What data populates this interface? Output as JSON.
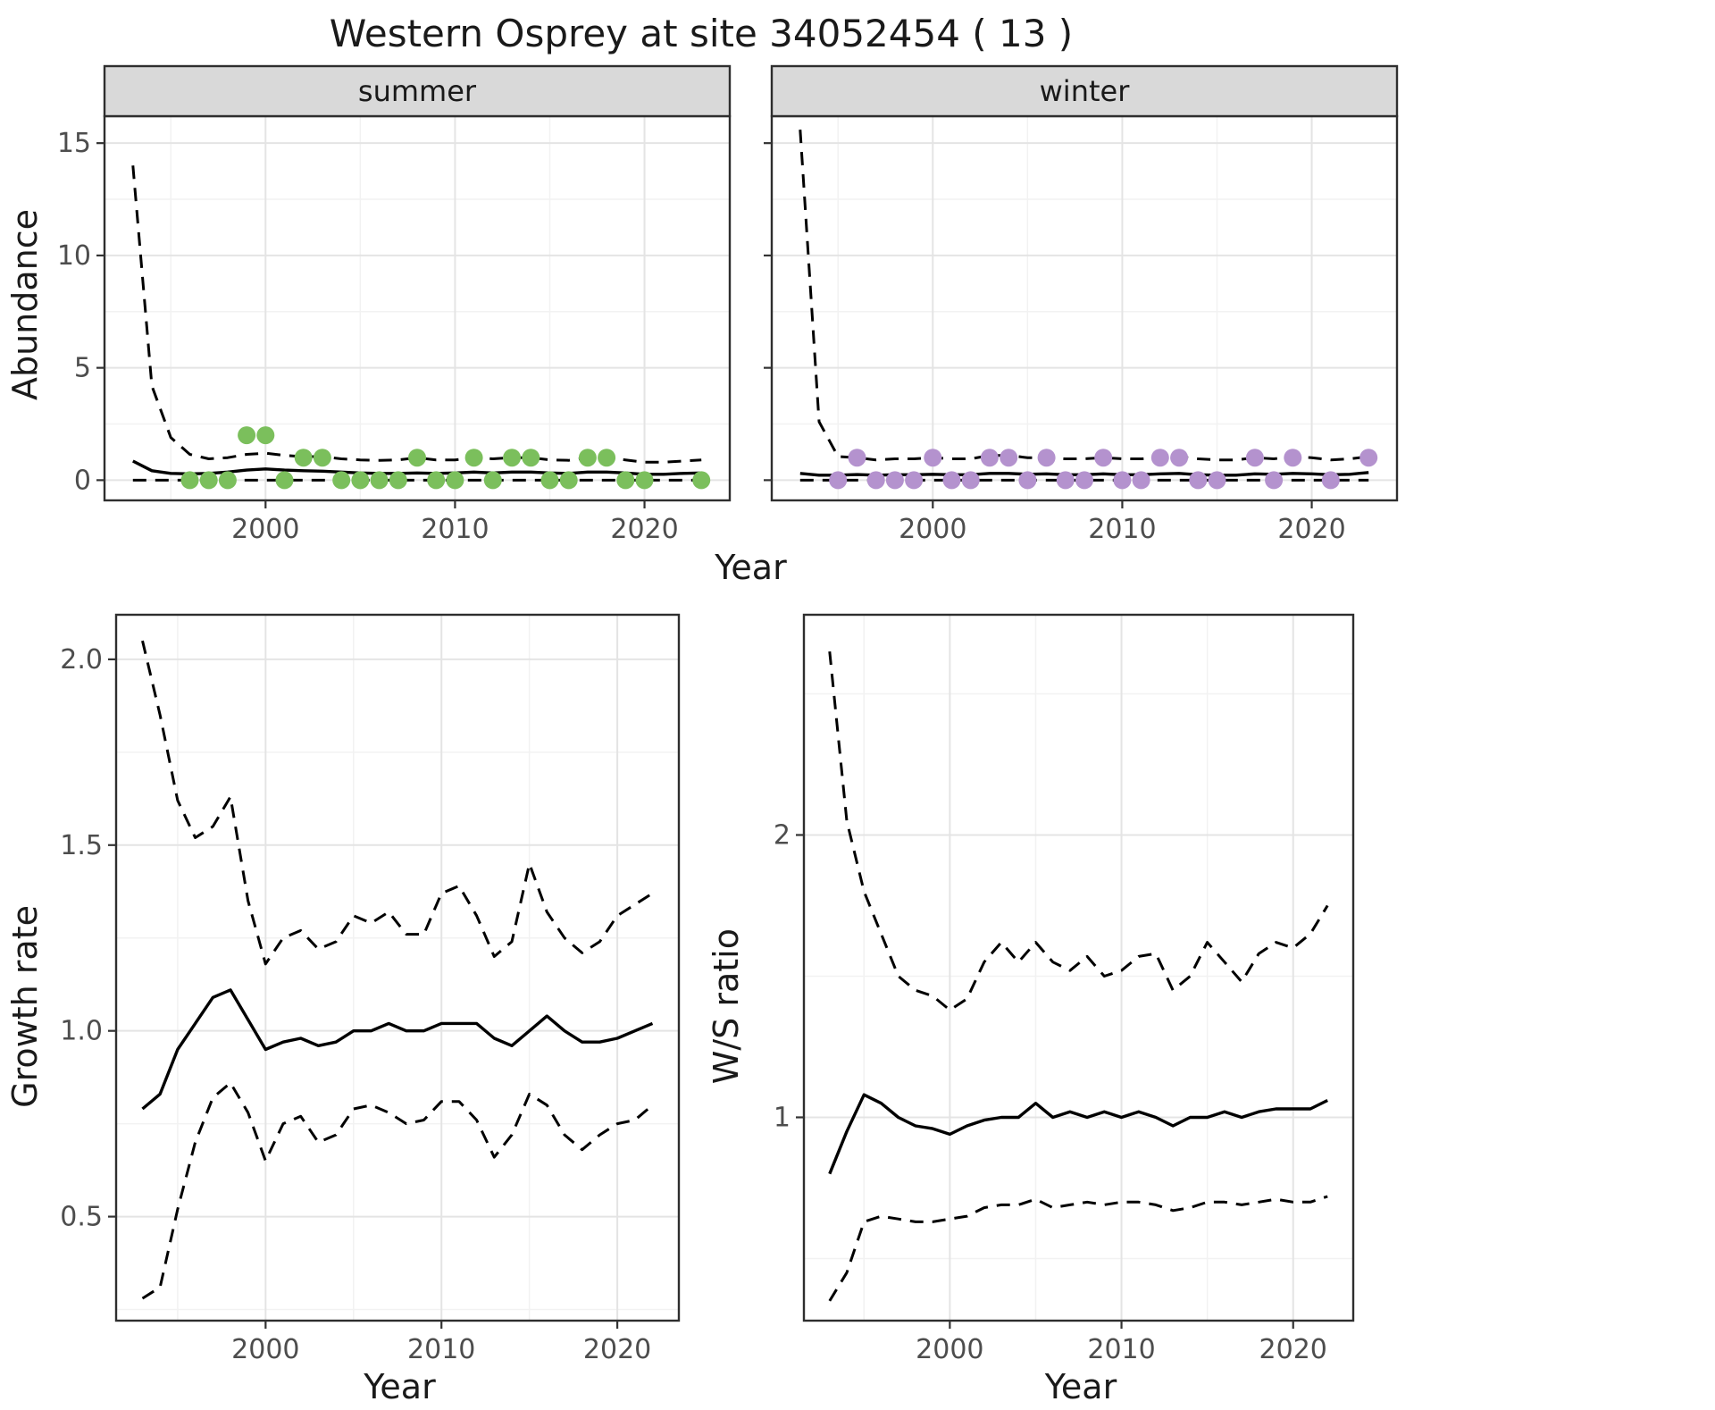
{
  "title": "Western Osprey at site 34052454 ( 13 )",
  "axes": {
    "abundance_label": "Abundance",
    "year_label": "Year",
    "growth_label": "Growth rate",
    "ws_label": "W/S ratio"
  },
  "facets": {
    "summer": "summer",
    "winter": "winter"
  },
  "colors": {
    "summer_points": "#7bbf5c",
    "winter_points": "#b492ce",
    "line": "#000000",
    "strip_bg": "#d9d9d9",
    "strip_text": "#1a1a1a",
    "grid_major": "#e4e4e4",
    "grid_minor": "#f2f2f2",
    "panel_border": "#2e2e2e",
    "tick_text": "#4d4d4d",
    "tick_mark": "#333333"
  },
  "chart_data": [
    {
      "id": "abundance_summer",
      "type": "line",
      "facet_label": "summer",
      "ylabel": "Abundance",
      "xlabel": "Year",
      "xlim": [
        1991.5,
        2024.5
      ],
      "ylim": [
        -0.9,
        16.2
      ],
      "xticks": {
        "values": [
          2000,
          2010,
          2020
        ],
        "labels": [
          "2000",
          "2010",
          "2020"
        ],
        "minor": [
          1995,
          2005,
          2015
        ]
      },
      "yticks": {
        "values": [
          0,
          5,
          10,
          15
        ],
        "labels": [
          "0",
          "5",
          "10",
          "15"
        ],
        "minor": [
          2.5,
          7.5,
          12.5
        ]
      },
      "x": [
        1993,
        1994,
        1995,
        1996,
        1997,
        1998,
        1999,
        2000,
        2001,
        2002,
        2003,
        2004,
        2005,
        2006,
        2007,
        2008,
        2009,
        2010,
        2011,
        2012,
        2013,
        2014,
        2015,
        2016,
        2017,
        2018,
        2019,
        2020,
        2021,
        2022,
        2023
      ],
      "series": [
        {
          "name": "median",
          "style": "solid",
          "values": [
            0.85,
            0.42,
            0.3,
            0.28,
            0.3,
            0.36,
            0.45,
            0.5,
            0.45,
            0.42,
            0.4,
            0.36,
            0.32,
            0.3,
            0.3,
            0.32,
            0.3,
            0.32,
            0.36,
            0.32,
            0.36,
            0.36,
            0.32,
            0.3,
            0.36,
            0.36,
            0.32,
            0.26,
            0.26,
            0.3,
            0.32
          ]
        },
        {
          "name": "upper_95ci",
          "style": "dashed",
          "values": [
            14,
            4.2,
            1.9,
            1.15,
            0.95,
            1,
            1.15,
            1.2,
            1.1,
            1.05,
            1.05,
            0.95,
            0.9,
            0.88,
            0.9,
            1,
            0.9,
            0.9,
            1,
            0.95,
            1,
            1,
            0.9,
            0.88,
            1,
            1,
            0.9,
            0.8,
            0.8,
            0.85,
            0.9
          ]
        },
        {
          "name": "lower_95ci",
          "style": "dashed",
          "values": [
            0,
            0,
            0,
            0,
            0,
            0,
            0,
            0,
            0,
            0,
            0,
            0,
            0,
            0,
            0,
            0,
            0,
            0,
            0,
            0,
            0,
            0,
            0,
            0,
            0,
            0,
            0,
            0,
            0,
            0,
            0
          ]
        }
      ],
      "points": {
        "name": "observed_counts",
        "color_key": "summer_points",
        "x": [
          1996,
          1997,
          1998,
          1999,
          2000,
          2001,
          2002,
          2003,
          2004,
          2005,
          2006,
          2007,
          2008,
          2009,
          2010,
          2011,
          2012,
          2013,
          2014,
          2015,
          2016,
          2017,
          2018,
          2019,
          2020,
          2023
        ],
        "y": [
          0,
          0,
          0,
          2,
          2,
          0,
          1,
          1,
          0,
          0,
          0,
          0,
          1,
          0,
          0,
          1,
          0,
          1,
          1,
          0,
          0,
          1,
          1,
          0,
          0,
          0
        ]
      }
    },
    {
      "id": "abundance_winter",
      "type": "line",
      "facet_label": "winter",
      "ylabel": "Abundance",
      "xlabel": "Year",
      "xlim": [
        1991.5,
        2024.5
      ],
      "ylim": [
        -0.9,
        16.2
      ],
      "xticks": {
        "values": [
          2000,
          2010,
          2020
        ],
        "labels": [
          "2000",
          "2010",
          "2020"
        ],
        "minor": [
          1995,
          2005,
          2015
        ]
      },
      "yticks": {
        "values": [
          0,
          5,
          10,
          15
        ],
        "labels": [
          "0",
          "5",
          "10",
          "15"
        ],
        "minor": [
          2.5,
          7.5,
          12.5
        ]
      },
      "x": [
        1993,
        1994,
        1995,
        1996,
        1997,
        1998,
        1999,
        2000,
        2001,
        2002,
        2003,
        2004,
        2005,
        2006,
        2007,
        2008,
        2009,
        2010,
        2011,
        2012,
        2013,
        2014,
        2015,
        2016,
        2017,
        2018,
        2019,
        2020,
        2021,
        2022,
        2023
      ],
      "series": [
        {
          "name": "median",
          "style": "solid",
          "values": [
            0.3,
            0.22,
            0.22,
            0.25,
            0.22,
            0.24,
            0.24,
            0.26,
            0.24,
            0.24,
            0.3,
            0.3,
            0.26,
            0.28,
            0.24,
            0.24,
            0.28,
            0.24,
            0.24,
            0.28,
            0.3,
            0.24,
            0.22,
            0.22,
            0.28,
            0.26,
            0.3,
            0.28,
            0.24,
            0.26,
            0.34
          ]
        },
        {
          "name": "upper_95ci",
          "style": "dashed",
          "values": [
            15.6,
            2.6,
            1.05,
            1,
            0.9,
            0.95,
            0.95,
            1,
            0.95,
            0.95,
            1.1,
            1.1,
            1,
            1,
            0.95,
            0.95,
            1,
            0.95,
            0.95,
            1,
            1.05,
            0.95,
            0.9,
            0.9,
            1,
            0.95,
            1.05,
            1,
            0.9,
            0.95,
            1.05
          ]
        },
        {
          "name": "lower_95ci",
          "style": "dashed",
          "values": [
            0,
            0,
            0,
            0,
            0,
            0,
            0,
            0,
            0,
            0,
            0,
            0,
            0,
            0,
            0,
            0,
            0,
            0,
            0,
            0,
            0,
            0,
            0,
            0,
            0,
            0,
            0,
            0,
            0,
            0,
            0
          ]
        }
      ],
      "points": {
        "name": "observed_counts",
        "color_key": "winter_points",
        "x": [
          1995,
          1996,
          1997,
          1998,
          1999,
          2000,
          2001,
          2002,
          2003,
          2004,
          2005,
          2006,
          2007,
          2008,
          2009,
          2010,
          2011,
          2012,
          2013,
          2014,
          2015,
          2017,
          2018,
          2019,
          2021,
          2023
        ],
        "y": [
          0,
          1,
          0,
          0,
          0,
          1,
          0,
          0,
          1,
          1,
          0,
          1,
          0,
          0,
          1,
          0,
          0,
          1,
          1,
          0,
          0,
          1,
          0,
          1,
          0,
          1
        ]
      }
    },
    {
      "id": "growth_rate",
      "type": "line",
      "facet_label": null,
      "ylabel": "Growth rate",
      "xlabel": "Year",
      "xlim": [
        1991.5,
        2023.5
      ],
      "ylim": [
        0.22,
        2.12
      ],
      "xticks": {
        "values": [
          2000,
          2010,
          2020
        ],
        "labels": [
          "2000",
          "2010",
          "2020"
        ],
        "minor": [
          1995,
          2005,
          2015
        ]
      },
      "yticks": {
        "values": [
          0.5,
          1.0,
          1.5,
          2.0
        ],
        "labels": [
          "0.5",
          "1.0",
          "1.5",
          "2.0"
        ],
        "minor": [
          0.25,
          0.75,
          1.25,
          1.75
        ]
      },
      "x": [
        1993,
        1994,
        1995,
        1996,
        1997,
        1998,
        1999,
        2000,
        2001,
        2002,
        2003,
        2004,
        2005,
        2006,
        2007,
        2008,
        2009,
        2010,
        2011,
        2012,
        2013,
        2014,
        2015,
        2016,
        2017,
        2018,
        2019,
        2020,
        2021,
        2022
      ],
      "series": [
        {
          "name": "median",
          "style": "solid",
          "values": [
            0.79,
            0.83,
            0.95,
            1.02,
            1.09,
            1.11,
            1.03,
            0.95,
            0.97,
            0.98,
            0.96,
            0.97,
            1.0,
            1.0,
            1.02,
            1.0,
            1.0,
            1.02,
            1.02,
            1.02,
            0.98,
            0.96,
            1.0,
            1.04,
            1.0,
            0.97,
            0.97,
            0.98,
            1.0,
            1.02
          ]
        },
        {
          "name": "upper_95ci",
          "style": "dashed",
          "values": [
            2.05,
            1.85,
            1.62,
            1.52,
            1.55,
            1.63,
            1.35,
            1.18,
            1.25,
            1.27,
            1.22,
            1.24,
            1.31,
            1.29,
            1.32,
            1.26,
            1.26,
            1.37,
            1.39,
            1.31,
            1.2,
            1.24,
            1.45,
            1.32,
            1.25,
            1.21,
            1.24,
            1.31,
            1.34,
            1.37
          ]
        },
        {
          "name": "lower_95ci",
          "style": "dashed",
          "values": [
            0.28,
            0.31,
            0.52,
            0.7,
            0.82,
            0.86,
            0.78,
            0.65,
            0.75,
            0.77,
            0.7,
            0.72,
            0.79,
            0.8,
            0.78,
            0.75,
            0.76,
            0.81,
            0.81,
            0.76,
            0.66,
            0.72,
            0.83,
            0.8,
            0.72,
            0.68,
            0.72,
            0.75,
            0.76,
            0.8
          ]
        }
      ],
      "points": null
    },
    {
      "id": "ws_ratio",
      "type": "line",
      "facet_label": null,
      "ylabel": "W/S ratio",
      "xlabel": "Year",
      "xlim": [
        1991.5,
        2023.5
      ],
      "ylim": [
        0.28,
        2.78
      ],
      "xticks": {
        "values": [
          2000,
          2010,
          2020
        ],
        "labels": [
          "2000",
          "2010",
          "2020"
        ],
        "minor": [
          1995,
          2005,
          2015
        ]
      },
      "yticks": {
        "values": [
          1,
          2
        ],
        "labels": [
          "1",
          "2"
        ],
        "minor": [
          0.5,
          1.5,
          2.5
        ]
      },
      "x": [
        1993,
        1994,
        1995,
        1996,
        1997,
        1998,
        1999,
        2000,
        2001,
        2002,
        2003,
        2004,
        2005,
        2006,
        2007,
        2008,
        2009,
        2010,
        2011,
        2012,
        2013,
        2014,
        2015,
        2016,
        2017,
        2018,
        2019,
        2020,
        2021,
        2022
      ],
      "series": [
        {
          "name": "median",
          "style": "solid",
          "values": [
            0.8,
            0.95,
            1.08,
            1.05,
            1.0,
            0.97,
            0.96,
            0.94,
            0.97,
            0.99,
            1.0,
            1.0,
            1.05,
            1.0,
            1.02,
            1.0,
            1.02,
            1.0,
            1.02,
            1.0,
            0.97,
            1.0,
            1.0,
            1.02,
            1.0,
            1.02,
            1.03,
            1.03,
            1.03,
            1.06
          ]
        },
        {
          "name": "upper_95ci",
          "style": "dashed",
          "values": [
            2.65,
            2.05,
            1.8,
            1.65,
            1.5,
            1.45,
            1.43,
            1.38,
            1.42,
            1.55,
            1.62,
            1.55,
            1.62,
            1.55,
            1.52,
            1.57,
            1.5,
            1.52,
            1.57,
            1.58,
            1.45,
            1.5,
            1.62,
            1.55,
            1.48,
            1.58,
            1.62,
            1.6,
            1.65,
            1.75
          ]
        },
        {
          "name": "lower_95ci",
          "style": "dashed",
          "values": [
            0.35,
            0.45,
            0.63,
            0.65,
            0.64,
            0.63,
            0.63,
            0.64,
            0.65,
            0.68,
            0.69,
            0.69,
            0.71,
            0.68,
            0.69,
            0.7,
            0.69,
            0.7,
            0.7,
            0.69,
            0.67,
            0.68,
            0.7,
            0.7,
            0.69,
            0.7,
            0.71,
            0.7,
            0.7,
            0.72
          ]
        }
      ],
      "points": null
    }
  ]
}
